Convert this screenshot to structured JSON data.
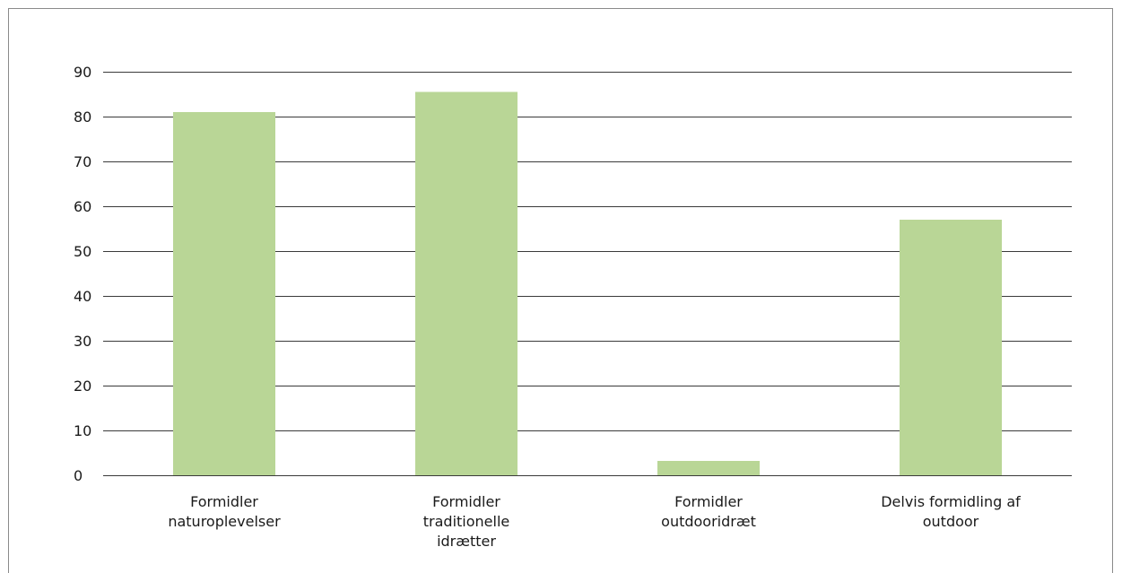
{
  "chart_data": {
    "type": "bar",
    "categories": [
      [
        "Formidler",
        "naturoplevelser"
      ],
      [
        "Formidler",
        "traditionelle",
        "idrætter"
      ],
      [
        "Formidler",
        "outdooridræt"
      ],
      [
        "Delvis formidling af",
        "outdoor"
      ]
    ],
    "values": [
      81,
      85.5,
      3.2,
      57
    ],
    "ylim": [
      0,
      90
    ],
    "yticks": [
      0,
      10,
      20,
      30,
      40,
      50,
      60,
      70,
      80,
      90
    ],
    "grid": true,
    "bar_color": "#b9d696",
    "grid_color": "#3a3a3a",
    "title": "",
    "xlabel": "",
    "ylabel": ""
  }
}
